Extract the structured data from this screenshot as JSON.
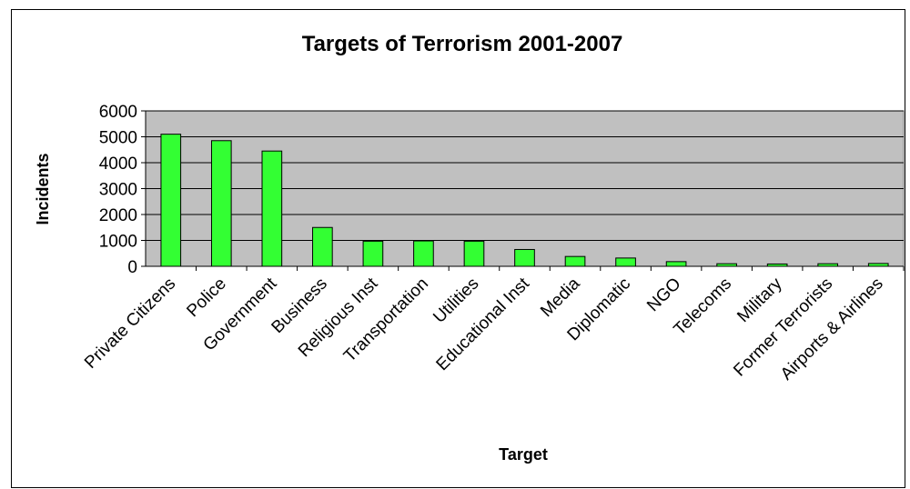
{
  "chart_data": {
    "type": "bar",
    "title": "Targets of Terrorism 2001-2007",
    "xlabel": "Target",
    "ylabel": "Incidents",
    "categories": [
      "Private Citizens",
      "Police",
      "Government",
      "Business",
      "Religious Inst",
      "Transportation",
      "Utilities",
      "Educational Inst",
      "Media",
      "Diplomatic",
      "NGO",
      "Telecoms",
      "Military",
      "Former Terrorists",
      "Airports & Airlines"
    ],
    "values": [
      5100,
      4850,
      4450,
      1500,
      970,
      980,
      970,
      650,
      380,
      320,
      180,
      100,
      90,
      100,
      110
    ],
    "ylim": [
      0,
      6000
    ],
    "yticks": [
      0,
      1000,
      2000,
      3000,
      4000,
      5000,
      6000
    ],
    "grid": true,
    "legend": "none",
    "colors": {
      "bar": "#33ff33",
      "plot_bg": "#c0c0c0",
      "gridline": "#000000"
    }
  }
}
